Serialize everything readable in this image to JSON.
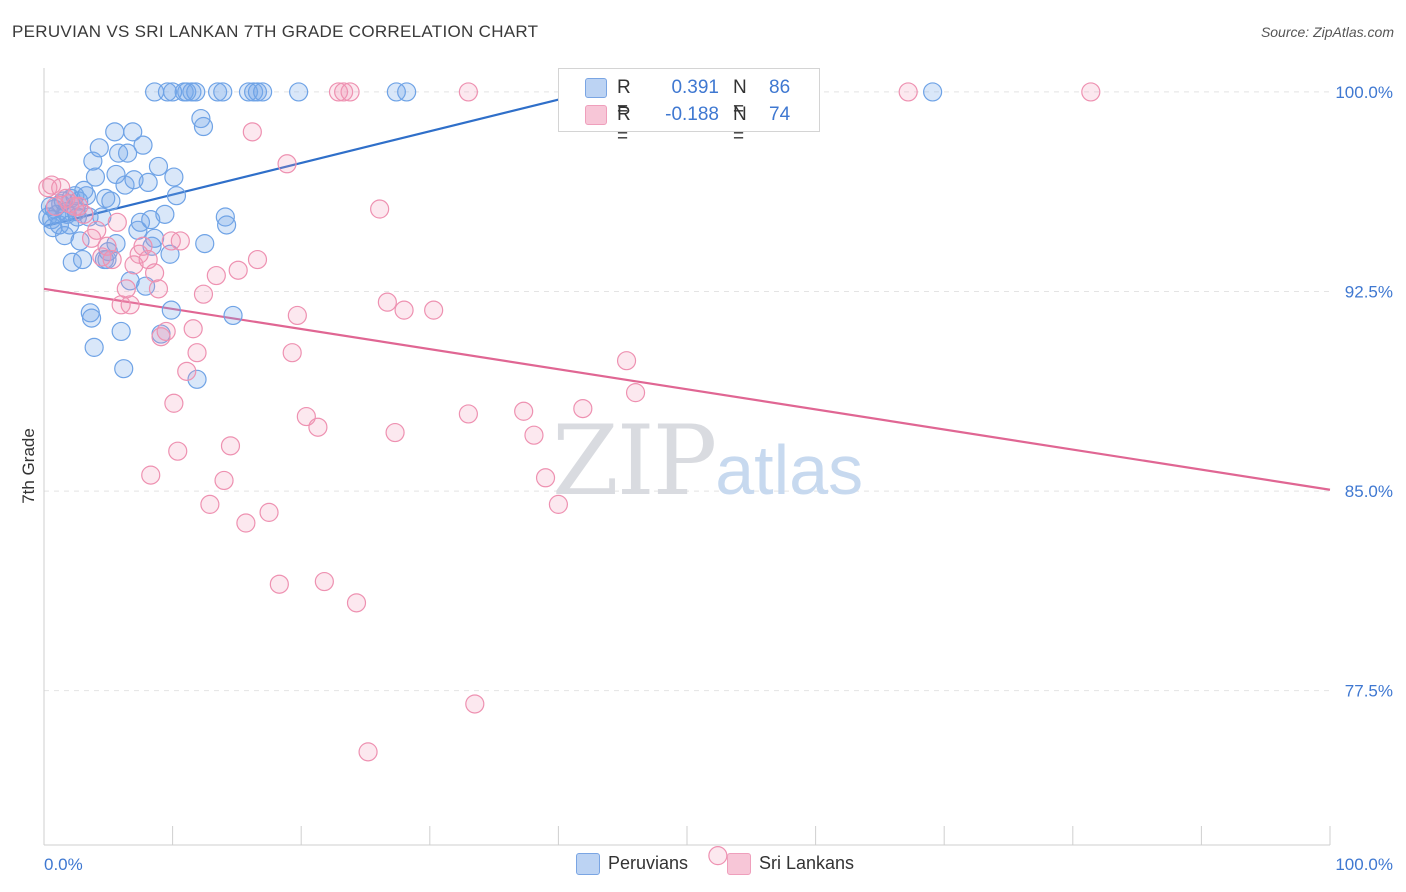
{
  "title": "PERUVIAN VS SRI LANKAN 7TH GRADE CORRELATION CHART",
  "source": "Source: ZipAtlas.com",
  "watermark": {
    "zip": "ZIP",
    "atlas": "atlas"
  },
  "colors": {
    "blue_point": "#6fa3e6",
    "blue_fill": "rgba(120,168,232,0.28)",
    "blue_line": "#2f6fc9",
    "pink_point": "#ee91b1",
    "pink_fill": "rgba(240,150,182,0.22)",
    "pink_line": "#e06693",
    "grid": "#e4e4e4",
    "tick_text_blue": "#3f78d1"
  },
  "legend": {
    "rows": [
      {
        "r_label": "R =",
        "r_value": "0.391",
        "n_label": "N =",
        "n_value": "86",
        "swatch_fill": "#bcd3f3",
        "swatch_stroke": "#7aa5e3"
      },
      {
        "r_label": "R =",
        "r_value": "-0.188",
        "n_label": "N =",
        "n_value": "74",
        "swatch_fill": "#f7c6d7",
        "swatch_stroke": "#ef9fbc"
      }
    ]
  },
  "bottom_legend": [
    {
      "label": "Peruvians",
      "swatch_fill": "#bcd3f3",
      "swatch_stroke": "#7aa5e3"
    },
    {
      "label": "Sri Lankans",
      "swatch_fill": "#f7c6d7",
      "swatch_stroke": "#ef9fbc"
    }
  ],
  "chart_data": {
    "type": "scatter",
    "title": "PERUVIAN VS SRI LANKAN 7TH GRADE CORRELATION CHART",
    "xlabel": "",
    "ylabel": "7th Grade",
    "xlim": [
      0,
      100
    ],
    "ylim": [
      71.7,
      101.2
    ],
    "y_ticks": [
      77.5,
      85.0,
      92.5,
      100.0
    ],
    "y_tick_labels": [
      "77.5%",
      "85.0%",
      "92.5%",
      "100.0%"
    ],
    "x_tick_labels": [
      "0.0%",
      "100.0%"
    ],
    "x_minor_ticks": [
      10,
      20,
      30,
      40,
      50,
      60,
      70,
      80,
      90,
      100
    ],
    "grid": true,
    "series": [
      {
        "name": "Peruvians",
        "r": 0.391,
        "n": 86,
        "trend": [
          [
            0.0,
            94.95
          ],
          [
            42.0,
            99.95
          ]
        ],
        "points": [
          [
            0.3,
            95.3
          ],
          [
            0.5,
            95.7
          ],
          [
            0.6,
            95.2
          ],
          [
            0.7,
            94.9
          ],
          [
            0.8,
            95.6
          ],
          [
            1.0,
            95.4
          ],
          [
            1.2,
            95.0
          ],
          [
            1.3,
            95.8
          ],
          [
            1.5,
            95.9
          ],
          [
            1.6,
            94.6
          ],
          [
            1.7,
            95.5
          ],
          [
            1.8,
            95.4
          ],
          [
            2.0,
            95.0
          ],
          [
            2.1,
            96.0
          ],
          [
            2.2,
            93.6
          ],
          [
            2.4,
            96.1
          ],
          [
            2.5,
            95.5
          ],
          [
            2.6,
            95.3
          ],
          [
            2.7,
            95.9
          ],
          [
            2.8,
            94.4
          ],
          [
            3.0,
            93.7
          ],
          [
            3.1,
            96.3
          ],
          [
            3.3,
            96.1
          ],
          [
            3.5,
            95.3
          ],
          [
            3.6,
            91.7
          ],
          [
            3.7,
            91.5
          ],
          [
            3.8,
            97.4
          ],
          [
            3.9,
            90.4
          ],
          [
            4.0,
            96.8
          ],
          [
            4.3,
            97.9
          ],
          [
            4.5,
            95.3
          ],
          [
            4.7,
            93.7
          ],
          [
            4.8,
            96.0
          ],
          [
            4.9,
            93.7
          ],
          [
            5.0,
            94.0
          ],
          [
            5.2,
            95.9
          ],
          [
            5.5,
            98.5
          ],
          [
            5.6,
            96.9
          ],
          [
            5.6,
            94.3
          ],
          [
            5.8,
            97.7
          ],
          [
            6.0,
            91.0
          ],
          [
            6.2,
            89.6
          ],
          [
            6.3,
            96.5
          ],
          [
            6.5,
            97.7
          ],
          [
            6.7,
            92.9
          ],
          [
            6.9,
            98.5
          ],
          [
            7.0,
            96.7
          ],
          [
            7.3,
            94.8
          ],
          [
            7.5,
            95.1
          ],
          [
            7.7,
            98.0
          ],
          [
            7.9,
            92.7
          ],
          [
            8.1,
            96.6
          ],
          [
            8.3,
            95.2
          ],
          [
            8.4,
            94.2
          ],
          [
            8.6,
            94.5
          ],
          [
            8.9,
            97.2
          ],
          [
            9.1,
            90.9
          ],
          [
            9.4,
            95.4
          ],
          [
            9.8,
            93.9
          ],
          [
            9.9,
            91.8
          ],
          [
            10.1,
            96.8
          ],
          [
            10.3,
            96.1
          ],
          [
            8.6,
            100.0
          ],
          [
            9.6,
            100.0
          ],
          [
            10.9,
            100.0
          ],
          [
            11.1,
            100.0
          ],
          [
            11.5,
            100.0
          ],
          [
            11.8,
            100.0
          ],
          [
            12.2,
            99.0
          ],
          [
            12.4,
            98.7
          ],
          [
            12.5,
            94.3
          ],
          [
            11.9,
            89.2
          ],
          [
            14.1,
            95.3
          ],
          [
            14.2,
            95.0
          ],
          [
            14.7,
            91.6
          ],
          [
            13.5,
            100.0
          ],
          [
            13.9,
            100.0
          ],
          [
            15.9,
            100.0
          ],
          [
            16.3,
            100.0
          ],
          [
            16.6,
            100.0
          ],
          [
            17.0,
            100.0
          ],
          [
            19.8,
            100.0
          ],
          [
            27.4,
            100.0
          ],
          [
            28.2,
            100.0
          ],
          [
            69.1,
            100.0
          ],
          [
            10.0,
            100.0
          ]
        ]
      },
      {
        "name": "Sri Lankans",
        "r": -0.188,
        "n": 74,
        "trend": [
          [
            0.0,
            92.6
          ],
          [
            100.0,
            85.05
          ]
        ],
        "points": [
          [
            0.3,
            96.4
          ],
          [
            0.6,
            96.5
          ],
          [
            0.9,
            95.7
          ],
          [
            1.3,
            96.4
          ],
          [
            1.7,
            96.0
          ],
          [
            2.0,
            95.8
          ],
          [
            2.4,
            95.7
          ],
          [
            2.7,
            95.7
          ],
          [
            3.1,
            95.4
          ],
          [
            3.7,
            94.5
          ],
          [
            4.1,
            94.8
          ],
          [
            4.5,
            93.8
          ],
          [
            4.9,
            94.2
          ],
          [
            5.3,
            93.7
          ],
          [
            5.7,
            95.1
          ],
          [
            6.0,
            92.0
          ],
          [
            6.4,
            92.6
          ],
          [
            6.7,
            92.0
          ],
          [
            7.0,
            93.5
          ],
          [
            7.4,
            93.9
          ],
          [
            7.7,
            94.2
          ],
          [
            8.1,
            93.7
          ],
          [
            8.3,
            85.6
          ],
          [
            8.6,
            93.2
          ],
          [
            8.9,
            92.6
          ],
          [
            9.1,
            90.8
          ],
          [
            9.5,
            91.0
          ],
          [
            9.9,
            94.4
          ],
          [
            10.1,
            88.3
          ],
          [
            10.4,
            86.5
          ],
          [
            10.6,
            94.4
          ],
          [
            11.1,
            89.5
          ],
          [
            11.6,
            91.1
          ],
          [
            11.9,
            90.2
          ],
          [
            12.4,
            92.4
          ],
          [
            12.9,
            84.5
          ],
          [
            13.4,
            93.1
          ],
          [
            14.0,
            85.4
          ],
          [
            14.5,
            86.7
          ],
          [
            15.1,
            93.3
          ],
          [
            15.7,
            83.8
          ],
          [
            16.2,
            98.5
          ],
          [
            16.6,
            93.7
          ],
          [
            17.5,
            84.2
          ],
          [
            18.3,
            81.5
          ],
          [
            18.9,
            97.3
          ],
          [
            19.3,
            90.2
          ],
          [
            19.7,
            91.6
          ],
          [
            20.4,
            87.8
          ],
          [
            21.3,
            87.4
          ],
          [
            21.8,
            81.6
          ],
          [
            22.9,
            100.0
          ],
          [
            23.3,
            100.0
          ],
          [
            23.8,
            100.0
          ],
          [
            24.3,
            80.8
          ],
          [
            25.2,
            75.2
          ],
          [
            26.1,
            95.6
          ],
          [
            26.7,
            92.1
          ],
          [
            27.3,
            87.2
          ],
          [
            28.0,
            91.8
          ],
          [
            30.3,
            91.8
          ],
          [
            33.0,
            100.0
          ],
          [
            33.0,
            87.9
          ],
          [
            33.5,
            77.0
          ],
          [
            37.3,
            88.0
          ],
          [
            38.1,
            87.1
          ],
          [
            39.0,
            85.5
          ],
          [
            40.0,
            84.5
          ],
          [
            41.9,
            88.1
          ],
          [
            45.3,
            89.9
          ],
          [
            46.0,
            88.7
          ],
          [
            52.4,
            71.3
          ],
          [
            67.2,
            100.0
          ],
          [
            81.4,
            100.0
          ]
        ]
      }
    ]
  }
}
